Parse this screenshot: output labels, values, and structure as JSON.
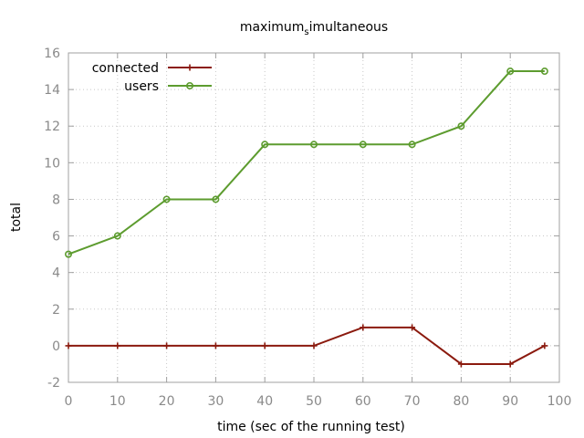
{
  "chart_data": {
    "type": "line",
    "title": {
      "prefix": "maximum",
      "subscript": "s",
      "suffix": "imultaneous"
    },
    "xlabel": "time (sec of the running test)",
    "ylabel": "total",
    "xlim": [
      0,
      100
    ],
    "ylim": [
      -2,
      16
    ],
    "xticks": [
      "0",
      "10",
      "20",
      "30",
      "40",
      "50",
      "60",
      "70",
      "80",
      "90",
      "100"
    ],
    "yticks": [
      "-2",
      "0",
      "2",
      "4",
      "6",
      "8",
      "10",
      "12",
      "14",
      "16"
    ],
    "grid": true,
    "legend_position": "top-left",
    "series": [
      {
        "name": "connected",
        "color": "#8b1a0e",
        "marker": "plus",
        "x": [
          0,
          10,
          20,
          30,
          40,
          50,
          60,
          70,
          80,
          90,
          97
        ],
        "y": [
          0,
          0,
          0,
          0,
          0,
          0,
          1,
          1,
          -1,
          -1,
          0
        ]
      },
      {
        "name": "users",
        "color": "#5d9c2f",
        "marker": "circle",
        "x": [
          0,
          10,
          20,
          30,
          40,
          50,
          60,
          70,
          80,
          90,
          97
        ],
        "y": [
          5,
          6,
          8,
          8,
          11,
          11,
          11,
          11,
          12,
          15,
          15
        ]
      }
    ]
  }
}
